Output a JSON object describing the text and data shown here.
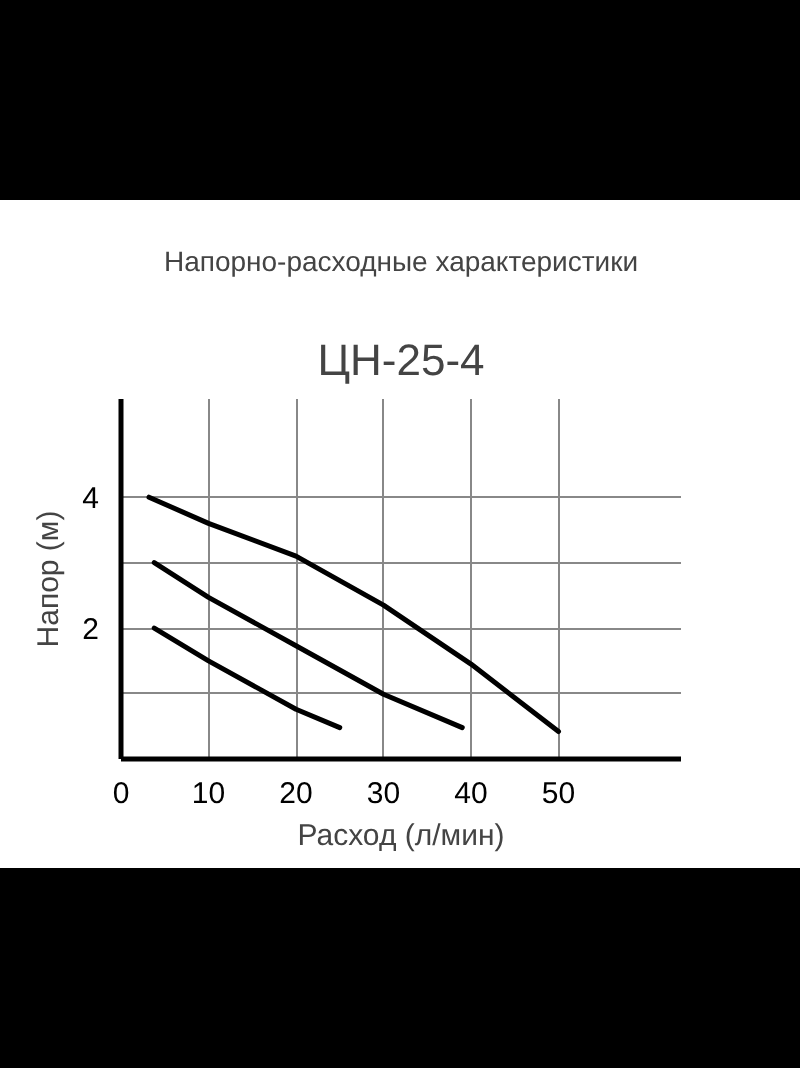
{
  "chart_data": {
    "type": "line",
    "title": "Напорно-расходные характеристики",
    "subtitle": "ЦН-25-4",
    "xlabel": "Расход (л/мин)",
    "ylabel": "Напор (м)",
    "xlim": [
      0,
      64
    ],
    "ylim": [
      0,
      5.5
    ],
    "xticks": [
      0,
      10,
      20,
      30,
      40,
      50
    ],
    "yticks": [
      {
        "value": 1,
        "label": null
      },
      2,
      {
        "value": 3,
        "label": null
      },
      4
    ],
    "grid": true,
    "marker": "none",
    "line_style": "solid",
    "series": [
      {
        "color": "#000000",
        "x": [
          3.2,
          10,
          20,
          30,
          40,
          50
        ],
        "values": [
          4.0,
          3.6,
          3.1,
          2.35,
          1.45,
          0.42
        ]
      },
      {
        "color": "#000000",
        "x": [
          3.8,
          10,
          20,
          30,
          39
        ],
        "values": [
          3.0,
          2.47,
          1.73,
          0.99,
          0.48
        ]
      },
      {
        "color": "#000000",
        "x": [
          3.8,
          10,
          20,
          25
        ],
        "values": [
          2.0,
          1.5,
          0.76,
          0.48
        ]
      }
    ]
  }
}
